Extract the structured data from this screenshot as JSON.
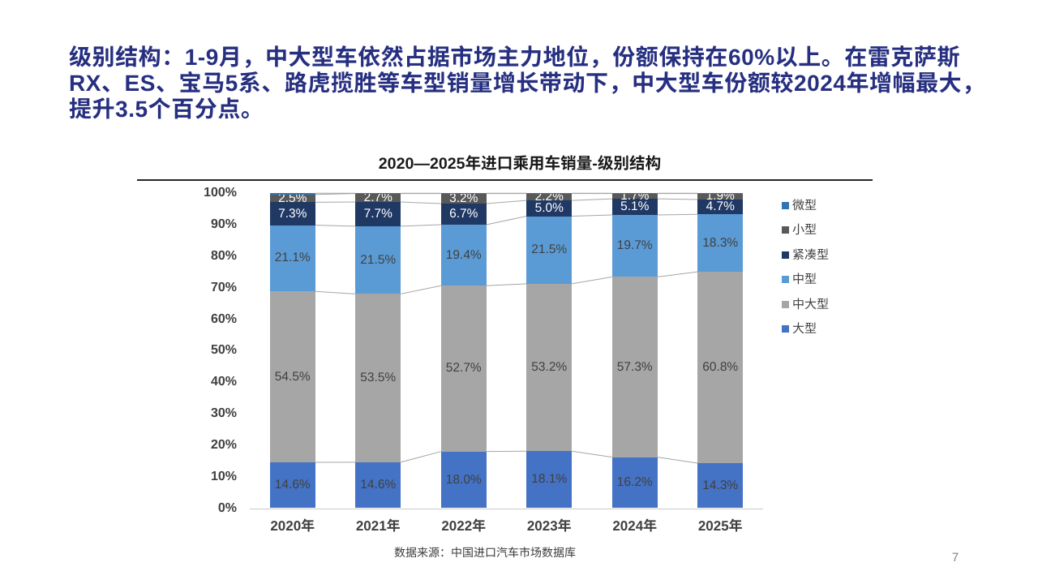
{
  "slide": {
    "headline": {
      "color": "#262F80",
      "lines": [
        "级别结构：1-9月，中大型车依然占据市场主力地位，份额保持在60%以上。在雷克萨斯",
        "RX、ES、宝马5系、路虎揽胜等车型销量增长带动下，中大型车份额较2024年增幅最大，",
        "提升3.5个百分点。"
      ]
    },
    "page_number": "7"
  },
  "chart": {
    "title": "2020—2025年进口乘用车销量-级别结构",
    "source_note": "数据来源：中国进口汽车市场数据库"
  },
  "chart_data": {
    "type": "bar",
    "stacked": true,
    "title": "2020—2025年进口乘用车销量-级别结构",
    "unit": "percent",
    "categories": [
      "2020年",
      "2021年",
      "2022年",
      "2023年",
      "2024年",
      "2025年"
    ],
    "series": [
      {
        "name": "大型",
        "color": "#4472C4",
        "values": [
          14.6,
          14.6,
          18.0,
          18.1,
          16.2,
          14.3
        ],
        "data_labels": true,
        "label_color": "#404040"
      },
      {
        "name": "中大型",
        "color": "#A6A6A6",
        "values": [
          54.5,
          53.5,
          52.7,
          53.2,
          57.3,
          60.8
        ],
        "data_labels": true,
        "label_color": "#404040"
      },
      {
        "name": "中型",
        "color": "#5B9BD5",
        "values": [
          21.1,
          21.5,
          19.4,
          21.5,
          19.7,
          18.3
        ],
        "data_labels": true,
        "label_color": "#404040"
      },
      {
        "name": "紧凑型",
        "color": "#1F3864",
        "values": [
          7.3,
          7.7,
          6.7,
          5.0,
          5.1,
          4.7
        ],
        "data_labels": true,
        "label_color": "#FFFFFF"
      },
      {
        "name": "小型",
        "color": "#595959",
        "values": [
          2.5,
          2.7,
          3.2,
          2.2,
          1.7,
          1.9
        ],
        "data_labels": true,
        "label_color": "#FFFFFF"
      },
      {
        "name": "微型",
        "color": "#2E75B6",
        "values": [
          0.4,
          0.1,
          0.1,
          0.1,
          0.1,
          0.1
        ],
        "data_labels": false,
        "label_color": "#FFFFFF"
      }
    ],
    "legend": [
      "微型",
      "小型",
      "紧凑型",
      "中型",
      "中大型",
      "大型"
    ],
    "legend_position": "right",
    "y_ticks": [
      "0%",
      "10%",
      "20%",
      "30%",
      "40%",
      "50%",
      "60%",
      "70%",
      "80%",
      "90%",
      "100%"
    ],
    "ylim": [
      0,
      100
    ],
    "grid": false,
    "series_connector_lines": true
  }
}
